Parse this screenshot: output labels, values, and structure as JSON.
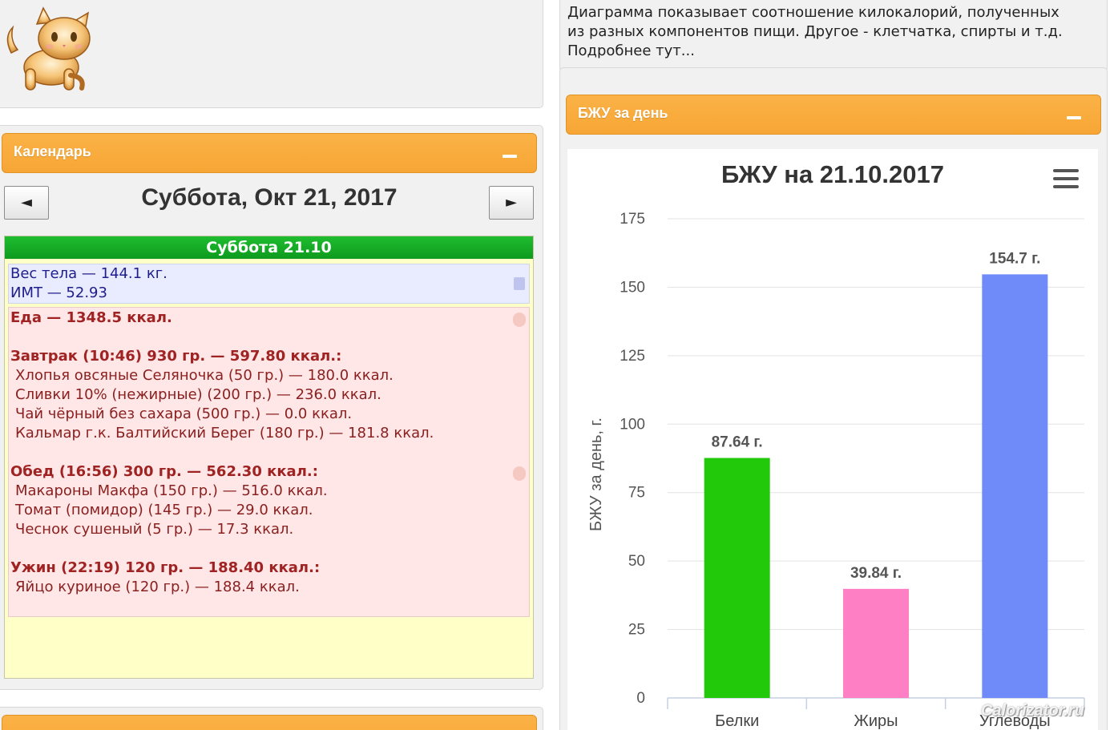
{
  "description_text": "Диаграмма показывает соотношение килокалорий, полученных из разных компонентов пищи. Другое - клетчатка, спирты и т.д. Подробнее тут...",
  "calendar": {
    "title": "Календарь",
    "prev_label": "◄",
    "next_label": "►",
    "date_label": "Суббота, Окт 21, 2017",
    "day_header": "Суббота 21.10",
    "weight_line": "Вес тела — 144.1 кг.",
    "bmi_line": "ИМТ — 52.93",
    "food_total": "Еда — 1348.5 ккал.",
    "meals": [
      {
        "header": "Завтрак (10:46) 930 гр. — 597.80 ккал.:",
        "items": [
          "Хлопья овсяные Селяночка (50 гр.) — 180.0 ккал.",
          "Сливки 10% (нежирные) (200 гр.) — 236.0 ккал.",
          "Чай чёрный без сахара (500 гр.) — 0.0 ккал.",
          "Кальмар г.к. Балтийский Берег (180 гр.) — 181.8 ккал."
        ]
      },
      {
        "header": "Обед (16:56) 300 гр. — 562.30 ккал.:",
        "items": [
          "Макароны Макфа (150 гр.) — 516.0 ккал.",
          "Томат (помидор) (145 гр.) — 29.0 ккал.",
          "Чеснок сушеный (5 гр.) — 17.3 ккал."
        ]
      },
      {
        "header": "Ужин (22:19) 120 гр. — 188.40 ккал.:",
        "items": [
          "Яйцо куриное (120 гр.) — 188.4 ккал."
        ]
      }
    ]
  },
  "bju_panel": {
    "title": "БЖУ за день"
  },
  "chart_data": {
    "type": "bar",
    "title": "БЖУ на 21.10.2017",
    "ylabel": "БЖУ за день, г.",
    "xlabel": "",
    "categories": [
      "Белки",
      "Жиры",
      "Углеводы"
    ],
    "values": [
      87.64,
      39.84,
      154.7
    ],
    "value_labels": [
      "87.64 г.",
      "39.84 г.",
      "154.7 г."
    ],
    "colors": [
      "#22c90a",
      "#ff7fc4",
      "#6f8bfa"
    ],
    "ylim": [
      0,
      175
    ],
    "yticks": [
      0,
      25,
      50,
      75,
      100,
      125,
      150,
      175
    ],
    "grid": true
  },
  "watermark": "Calorizator.ru"
}
